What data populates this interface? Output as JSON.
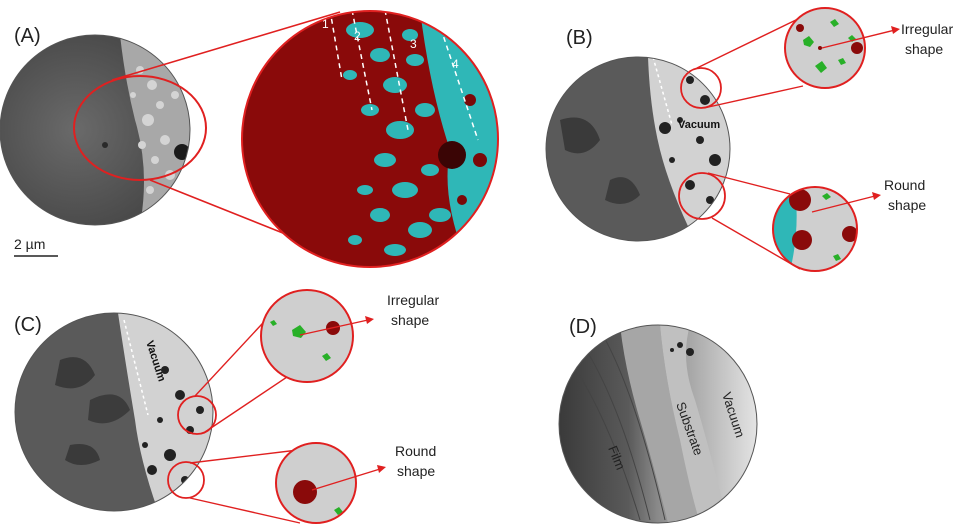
{
  "panels": {
    "a": {
      "letter": "(A)",
      "scale_bar": "2 µm",
      "zones": [
        "1",
        "2",
        "3",
        "4"
      ]
    },
    "b": {
      "letter": "(B)",
      "vacuum": "Vacuum",
      "callout_top": [
        "Irregular",
        "shape"
      ],
      "callout_bottom": [
        "Round",
        "shape"
      ]
    },
    "c": {
      "letter": "(C)",
      "vacuum": "Vacuum",
      "callout_top": [
        "Irregular",
        "shape"
      ],
      "callout_bottom": [
        "Round",
        "shape"
      ]
    },
    "d": {
      "letter": "(D)",
      "region_film": "Film",
      "region_substrate": "Substrate",
      "region_vacuum": "Vacuum"
    }
  },
  "colors": {
    "outline": "#e02020",
    "phase_red": "#8a0a0a",
    "phase_cyan": "#2fb7b7",
    "phase_green": "#28b028",
    "dark_region": "#5c5c5c",
    "light_region": "#cfcfcf"
  }
}
